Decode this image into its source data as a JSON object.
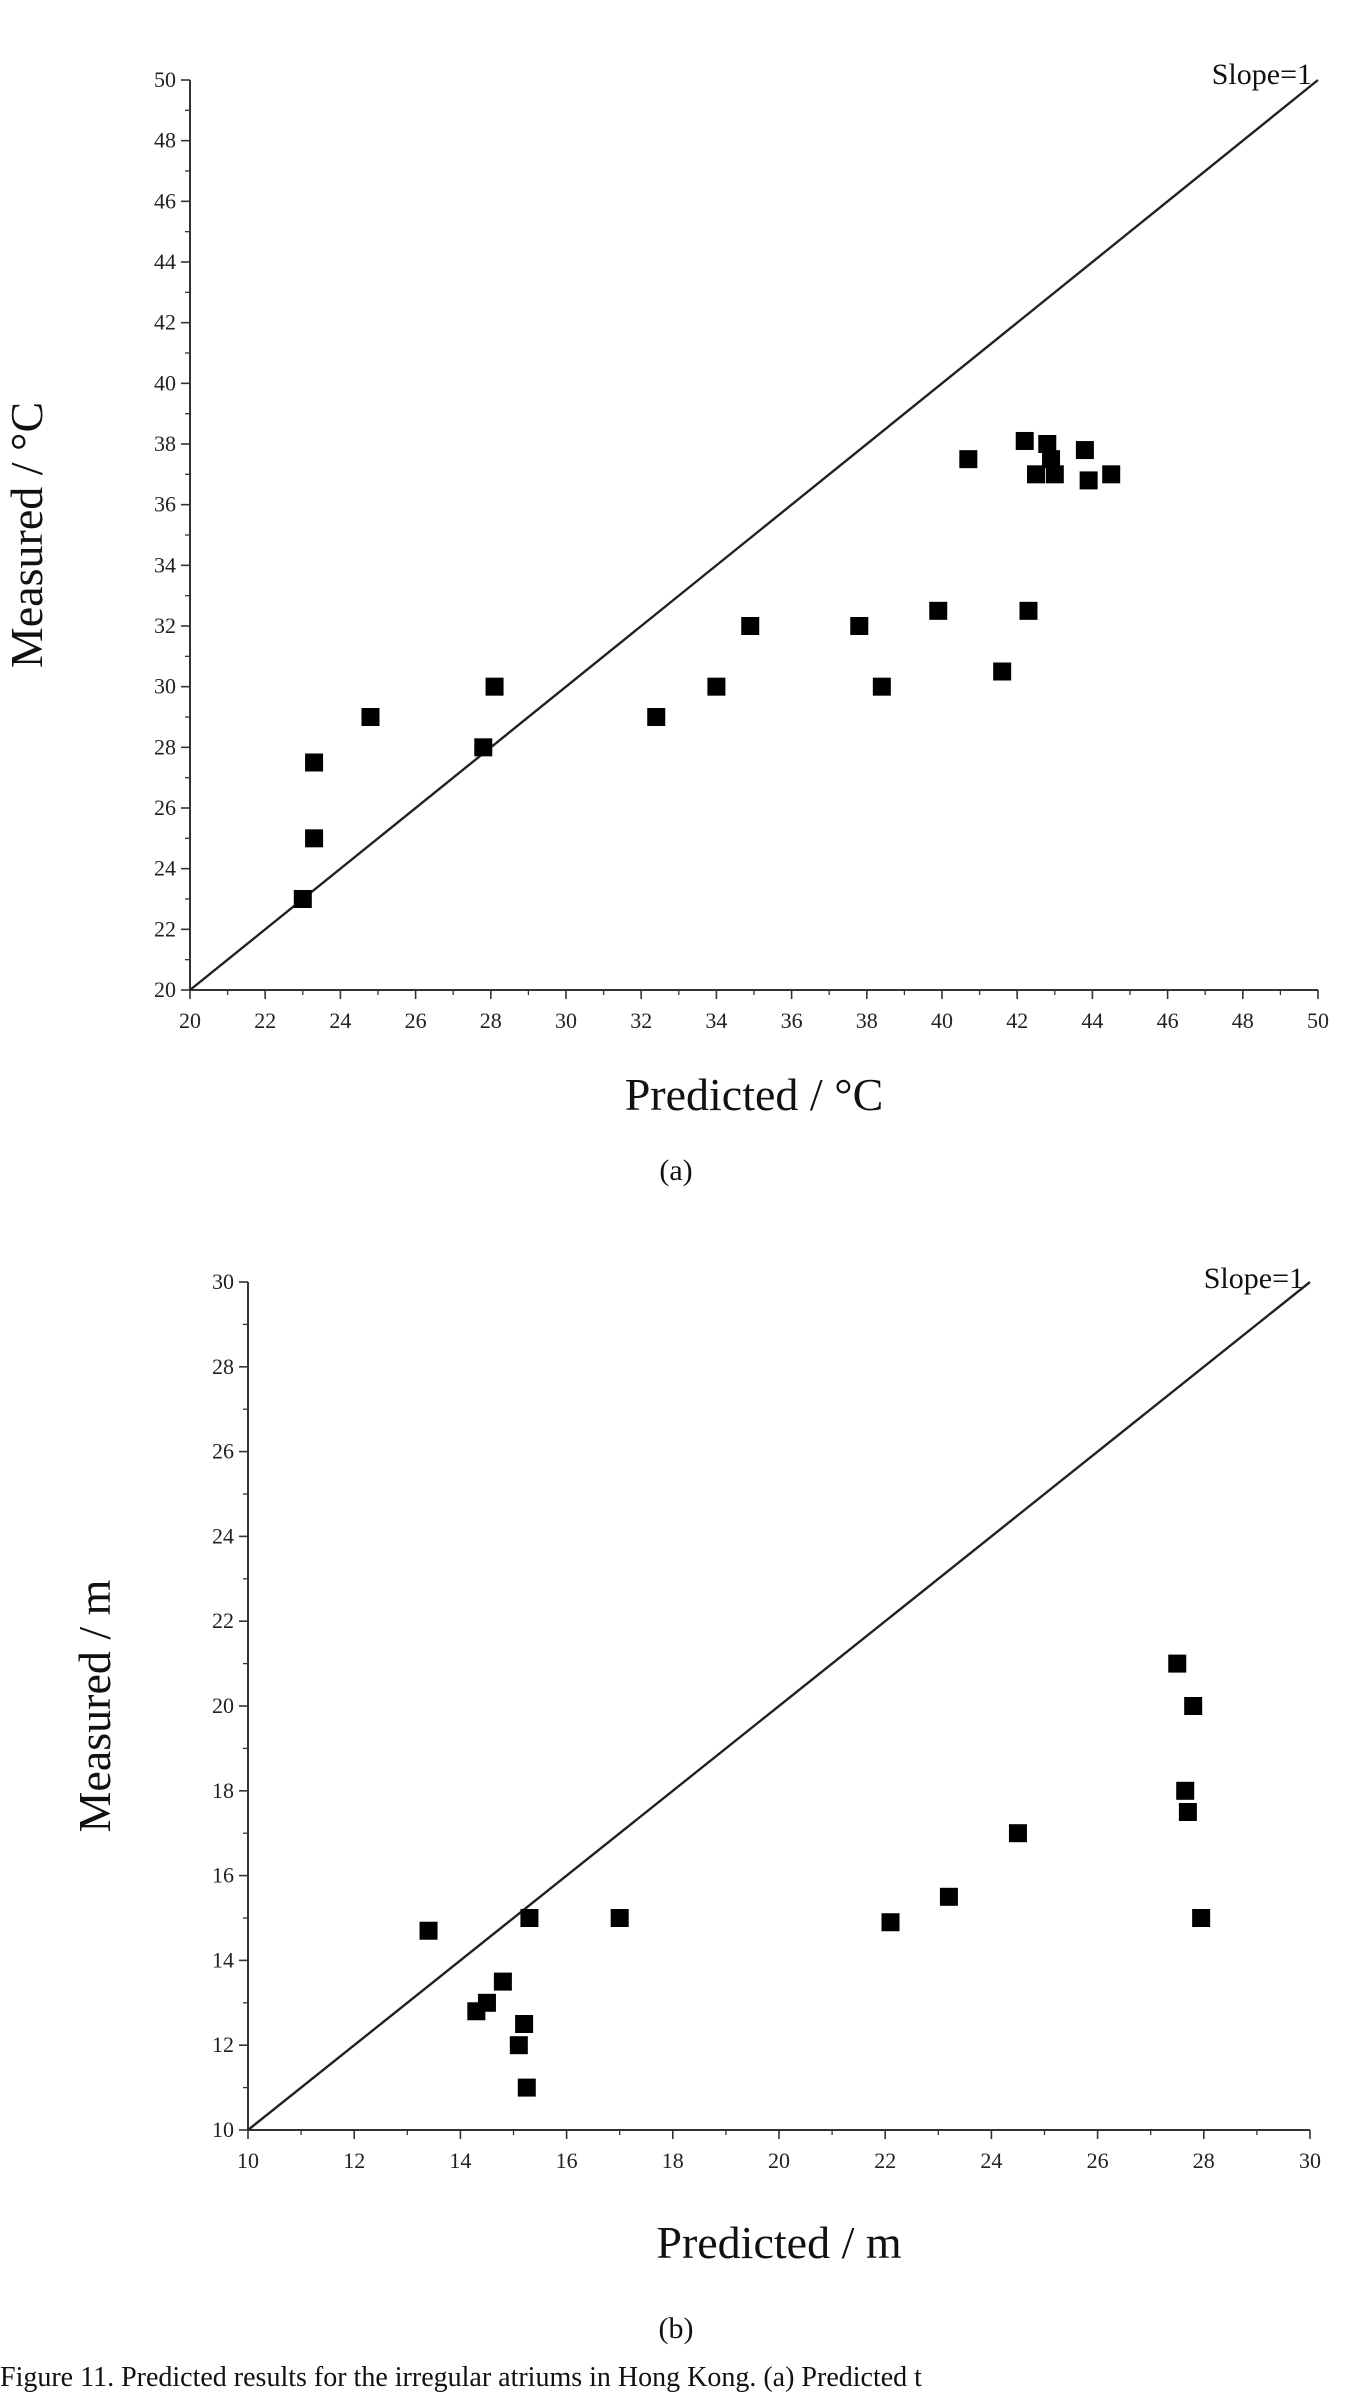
{
  "chart_data": [
    {
      "type": "scatter",
      "panel_label": "(a)",
      "xlabel": "Predicted / °C",
      "ylabel": "Measured / °C",
      "xlim": [
        20,
        50
      ],
      "ylim": [
        20,
        50
      ],
      "xticks": [
        20,
        22,
        24,
        26,
        28,
        30,
        32,
        34,
        36,
        38,
        40,
        42,
        44,
        46,
        48,
        50
      ],
      "yticks": [
        20,
        22,
        24,
        26,
        28,
        30,
        32,
        34,
        36,
        38,
        40,
        42,
        44,
        46,
        48,
        50
      ],
      "reference_line": {
        "label": "Slope=1",
        "from": [
          20,
          20
        ],
        "to": [
          50,
          50
        ]
      },
      "grid": false,
      "points": [
        {
          "x": 23.0,
          "y": 23.0
        },
        {
          "x": 23.3,
          "y": 25.0
        },
        {
          "x": 23.3,
          "y": 27.5
        },
        {
          "x": 24.8,
          "y": 29.0
        },
        {
          "x": 27.8,
          "y": 28.0
        },
        {
          "x": 28.1,
          "y": 30.0
        },
        {
          "x": 32.4,
          "y": 29.0
        },
        {
          "x": 34.0,
          "y": 30.0
        },
        {
          "x": 34.9,
          "y": 32.0
        },
        {
          "x": 37.8,
          "y": 32.0
        },
        {
          "x": 38.4,
          "y": 30.0
        },
        {
          "x": 39.9,
          "y": 32.5
        },
        {
          "x": 40.7,
          "y": 37.5
        },
        {
          "x": 41.6,
          "y": 30.5
        },
        {
          "x": 42.2,
          "y": 38.1
        },
        {
          "x": 42.3,
          "y": 32.5
        },
        {
          "x": 42.5,
          "y": 37.0
        },
        {
          "x": 42.8,
          "y": 38.0
        },
        {
          "x": 42.9,
          "y": 37.5
        },
        {
          "x": 43.0,
          "y": 37.0
        },
        {
          "x": 43.8,
          "y": 37.8
        },
        {
          "x": 43.9,
          "y": 36.8
        },
        {
          "x": 44.5,
          "y": 37.0
        }
      ]
    },
    {
      "type": "scatter",
      "panel_label": "(b)",
      "xlabel": "Predicted / m",
      "ylabel": "Measured / m",
      "xlim": [
        10,
        30
      ],
      "ylim": [
        10,
        30
      ],
      "xticks": [
        10,
        12,
        14,
        16,
        18,
        20,
        22,
        24,
        26,
        28,
        30
      ],
      "yticks": [
        10,
        12,
        14,
        16,
        18,
        20,
        22,
        24,
        26,
        28,
        30
      ],
      "reference_line": {
        "label": "Slope=1",
        "from": [
          10,
          10
        ],
        "to": [
          30,
          30
        ]
      },
      "grid": false,
      "points": [
        {
          "x": 13.4,
          "y": 14.7
        },
        {
          "x": 14.3,
          "y": 12.8
        },
        {
          "x": 14.5,
          "y": 13.0
        },
        {
          "x": 14.8,
          "y": 13.5
        },
        {
          "x": 15.1,
          "y": 12.0
        },
        {
          "x": 15.2,
          "y": 12.5
        },
        {
          "x": 15.25,
          "y": 11.0
        },
        {
          "x": 15.3,
          "y": 15.0
        },
        {
          "x": 17.0,
          "y": 15.0
        },
        {
          "x": 22.1,
          "y": 14.9
        },
        {
          "x": 23.2,
          "y": 15.5
        },
        {
          "x": 24.5,
          "y": 17.0
        },
        {
          "x": 27.5,
          "y": 21.0
        },
        {
          "x": 27.65,
          "y": 18.0
        },
        {
          "x": 27.7,
          "y": 17.5
        },
        {
          "x": 27.8,
          "y": 20.0
        },
        {
          "x": 27.95,
          "y": 15.0
        }
      ]
    }
  ],
  "caption": "Figure 11. Predicted results for the irregular atriums in Hong Kong. (a) Predicted t"
}
